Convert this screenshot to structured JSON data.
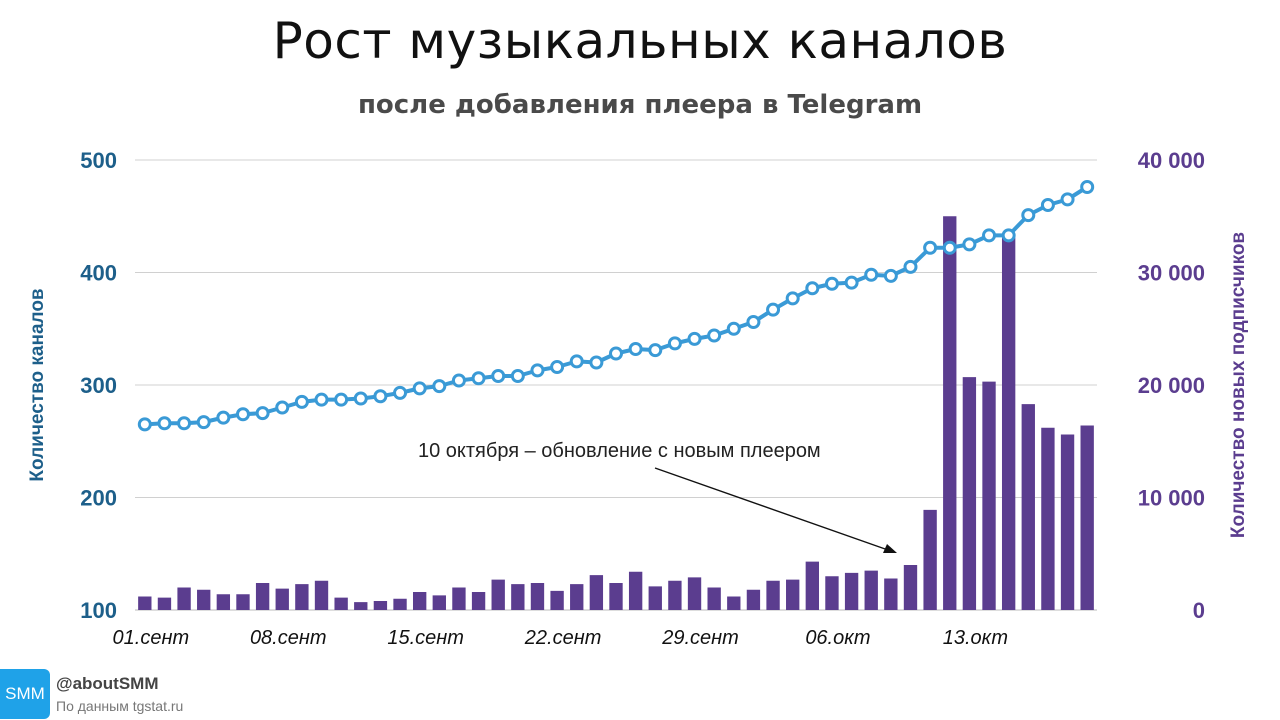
{
  "header": {
    "title": "Рост музыкальных каналов",
    "subtitle": "после добавления плеера в Telegram"
  },
  "footer": {
    "badge": "SMM",
    "handle": "@aboutSMM",
    "source": "По данным tgstat.ru"
  },
  "colors": {
    "line": "#3a9ad6",
    "bars": "#5b3d8f",
    "left_axis": "#1d5f8a",
    "right_axis": "#5b3d8f",
    "grid": "#d0d0d0"
  },
  "chart_data": {
    "type": "bar+line",
    "title": "Рост музыкальных каналов",
    "subtitle": "после добавления плеера в Telegram",
    "ylabel_left": "Количество каналов",
    "ylabel_right": "Количество новых подписчиков",
    "ylim_left": [
      100,
      500
    ],
    "ylim_right": [
      0,
      40000
    ],
    "yticks_left": [
      "500",
      "400",
      "300",
      "200",
      "100"
    ],
    "yticks_right": [
      "40 000",
      "30 000",
      "20 000",
      "10 000",
      "0"
    ],
    "x_tick_labels": [
      "01.сент",
      "08.сент",
      "15.сент",
      "22.сент",
      "29.сент",
      "06.окт",
      "13.окт"
    ],
    "x_tick_days": [
      0,
      7,
      14,
      21,
      28,
      35,
      42
    ],
    "grid": true,
    "annotation": "10 октября – обновление с новым плеером",
    "series": [
      {
        "name": "Количество каналов",
        "kind": "line",
        "axis": "left",
        "values": [
          265,
          266,
          266,
          267,
          271,
          274,
          275,
          280,
          285,
          287,
          287,
          288,
          290,
          293,
          297,
          299,
          304,
          306,
          308,
          308,
          313,
          316,
          321,
          320,
          328,
          332,
          331,
          337,
          341,
          344,
          350,
          356,
          367,
          377,
          386,
          390,
          391,
          398,
          397,
          405,
          422,
          422,
          425,
          433,
          433,
          451,
          460,
          465,
          476
        ]
      },
      {
        "name": "Количество новых подписчиков",
        "kind": "bar",
        "axis": "right",
        "values": [
          1200,
          1100,
          2000,
          1800,
          1400,
          1400,
          2400,
          1900,
          2300,
          2600,
          1100,
          700,
          800,
          1000,
          1600,
          1300,
          2000,
          1600,
          2700,
          2300,
          2400,
          1700,
          2300,
          3100,
          2400,
          3400,
          2100,
          2600,
          2900,
          2000,
          1200,
          1800,
          2600,
          2700,
          4300,
          3000,
          3300,
          3500,
          2800,
          4000,
          8900,
          35000,
          20700,
          20300,
          33100,
          18300,
          16200,
          15600,
          16400
        ]
      }
    ]
  }
}
